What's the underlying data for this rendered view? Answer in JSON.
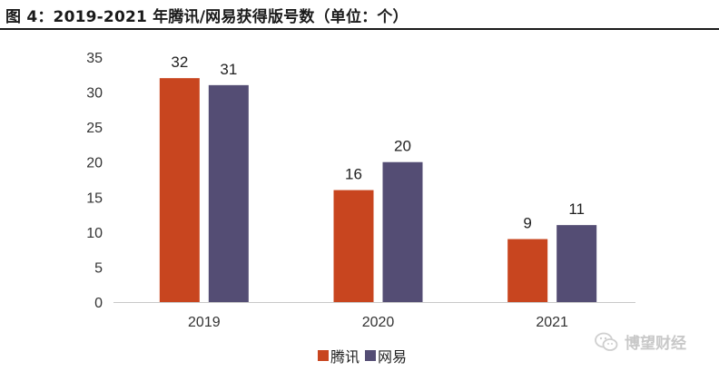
{
  "title": "图 4：2019-2021 年腾讯/网易获得版号数（单位：个）",
  "chart_data": {
    "type": "bar",
    "title": "图 4：2019-2021 年腾讯/网易获得版号数（单位：个）",
    "categories": [
      "2019",
      "2020",
      "2021"
    ],
    "series": [
      {
        "name": "腾讯",
        "color": "#c8451f",
        "values": [
          32,
          16,
          9
        ]
      },
      {
        "name": "网易",
        "color": "#544d74",
        "values": [
          31,
          20,
          11
        ]
      }
    ],
    "ylim": [
      0,
      35
    ],
    "yticks": [
      0,
      5,
      10,
      15,
      20,
      25,
      30,
      35
    ],
    "xlabel": "",
    "ylabel": "",
    "legend_position": "bottom"
  },
  "legend": [
    {
      "name": "腾讯",
      "color": "#c8451f"
    },
    {
      "name": "网易",
      "color": "#544d74"
    }
  ],
  "watermark": "博望财经"
}
